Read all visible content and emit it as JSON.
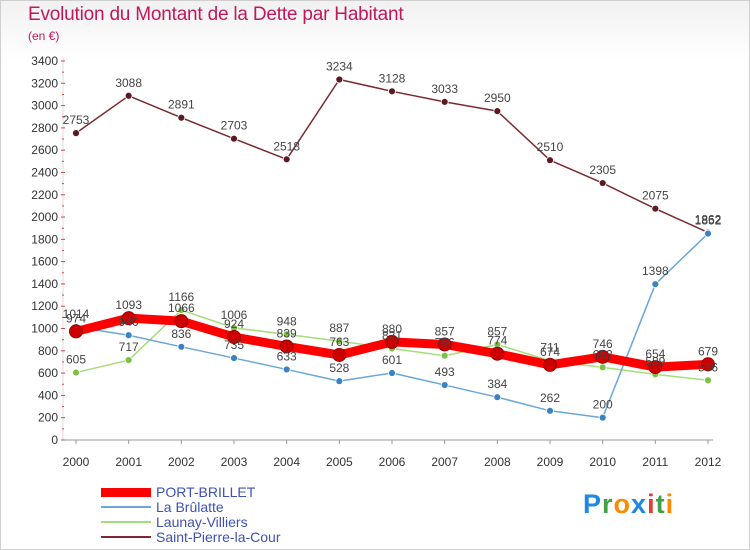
{
  "chart_data": {
    "type": "line",
    "title": "Evolution du Montant de la Dette par Habitant",
    "subtitle": "(en €)",
    "x": [
      "2000",
      "2001",
      "2002",
      "2003",
      "2004",
      "2005",
      "2006",
      "2007",
      "2008",
      "2009",
      "2010",
      "2011",
      "2012"
    ],
    "ylim": [
      0,
      3400
    ],
    "yticks": [
      0,
      200,
      400,
      600,
      800,
      1000,
      1200,
      1400,
      1600,
      1800,
      2000,
      2200,
      2400,
      2600,
      2800,
      3000,
      3200,
      3400
    ],
    "grid": false,
    "legend_position": "bottom-left",
    "series": [
      {
        "name": "PORT-BRILLET",
        "color": "#ff0000",
        "marker_color": "#cc0000",
        "values": [
          974,
          1093,
          1066,
          924,
          839,
          763,
          880,
          857,
          774,
          674,
          746,
          654,
          679
        ]
      },
      {
        "name": "La Brûlatte",
        "color": "#6aa7d6",
        "marker_color": "#3b82c4",
        "values": [
          1014,
          940,
          836,
          735,
          633,
          528,
          601,
          493,
          384,
          262,
          200,
          1398,
          1852
        ]
      },
      {
        "name": "Launay-Villiers",
        "color": "#a5dd7a",
        "marker_color": "#7cc242",
        "values": [
          605,
          717,
          1166,
          1006,
          948,
          887,
          821,
          756,
          857,
          711,
          652,
          589,
          536
        ]
      },
      {
        "name": "Saint-Pierre-la-Cour",
        "color": "#7a2a30",
        "marker_color": "#5c1a20",
        "values": [
          2753,
          3088,
          2891,
          2703,
          2518,
          3234,
          3128,
          3033,
          2950,
          2510,
          2305,
          2075,
          1862
        ]
      }
    ]
  },
  "brand": {
    "logo_letters": [
      "P",
      "r",
      "o",
      "x",
      "i",
      "t",
      "i"
    ],
    "logo_colors": [
      "#1e88e5",
      "#43a047",
      "#fb8c00",
      "#1e88e5",
      "#e53935",
      "#43a047",
      "#fb8c00"
    ]
  }
}
